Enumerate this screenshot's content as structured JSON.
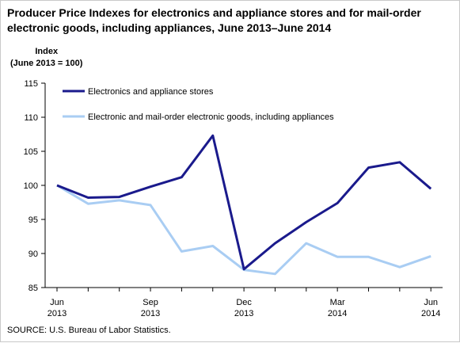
{
  "chart_data": {
    "type": "line",
    "title": "Producer Price Indexes for electronics and appliance stores and for mail-order electronic goods, including appliances, June 2013–June 2014",
    "ylabel_line1": "Index",
    "ylabel_line2": "(June 2013 = 100)",
    "xlabel": "",
    "ylim": [
      85,
      115
    ],
    "yticks": [
      85,
      90,
      95,
      100,
      105,
      110,
      115
    ],
    "grid": false,
    "legend_position": "top-left",
    "x": [
      "Jun 2013",
      "Jul 2013",
      "Aug 2013",
      "Sep 2013",
      "Oct 2013",
      "Nov 2013",
      "Dec 2013",
      "Jan 2014",
      "Feb 2014",
      "Mar 2014",
      "Apr 2014",
      "May 2014",
      "Jun 2014"
    ],
    "xtick_labels": [
      {
        "index": 0,
        "month": "Jun",
        "year": "2013"
      },
      {
        "index": 3,
        "month": "Sep",
        "year": "2013"
      },
      {
        "index": 6,
        "month": "Dec",
        "year": "2013"
      },
      {
        "index": 9,
        "month": "Mar",
        "year": "2014"
      },
      {
        "index": 12,
        "month": "Jun",
        "year": "2014"
      }
    ],
    "series": [
      {
        "name": "Electronics and appliance stores",
        "color": "#1a1a8c",
        "values": [
          100.0,
          98.2,
          98.3,
          99.8,
          101.2,
          107.3,
          87.7,
          91.5,
          94.6,
          97.4,
          102.6,
          103.4,
          99.5
        ]
      },
      {
        "name": "Electronic and mail-order electronic goods, including appliances",
        "color": "#a9cdf3",
        "values": [
          100.0,
          97.3,
          97.8,
          97.1,
          90.3,
          91.1,
          87.6,
          87.0,
          91.5,
          89.5,
          89.5,
          88.0,
          89.6
        ]
      }
    ]
  },
  "source": "SOURCE: U.S. Bureau of Labor Statistics."
}
